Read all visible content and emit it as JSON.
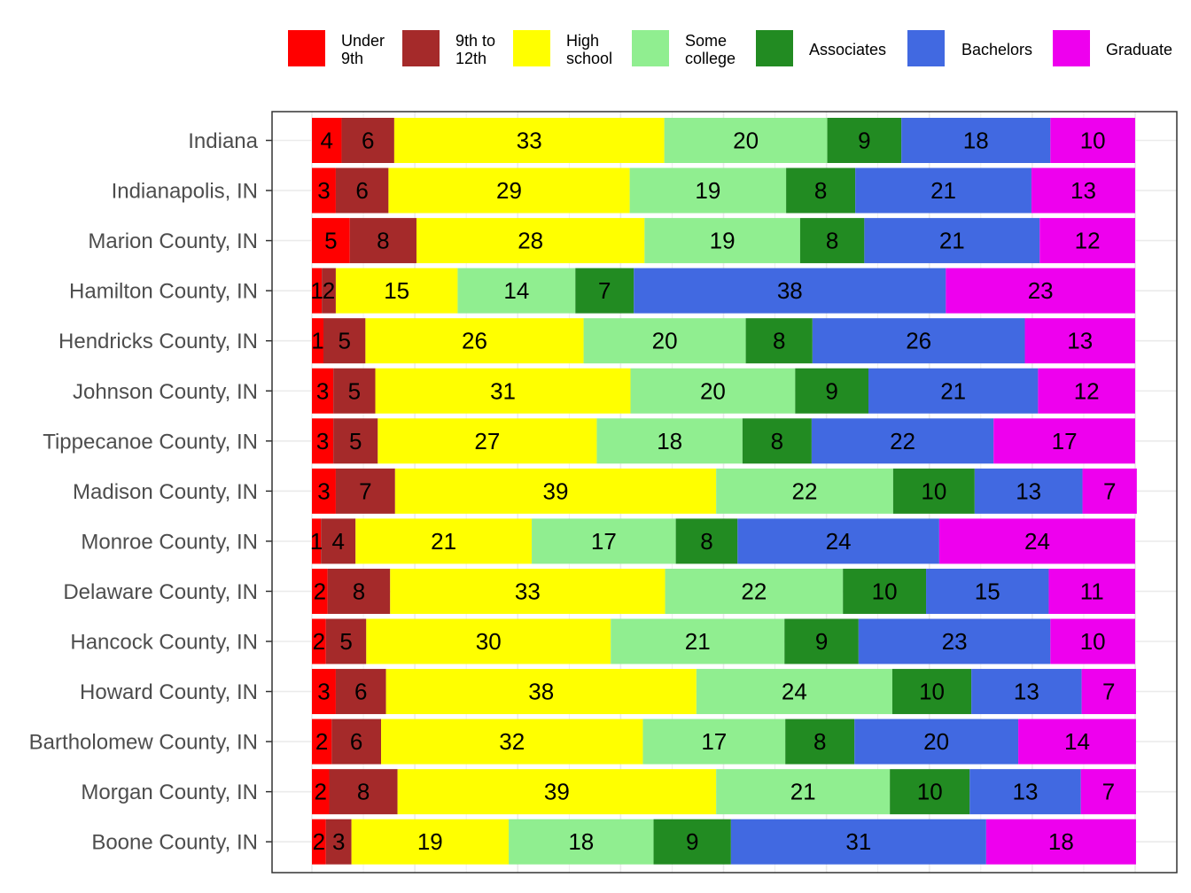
{
  "chart_data": {
    "type": "bar",
    "orientation": "horizontal",
    "stacked": true,
    "normalized_to_100": true,
    "grid": true,
    "legend_position": "top",
    "xlim": [
      0,
      100
    ],
    "categories": [
      "Indiana",
      "Indianapolis, IN",
      "Marion County, IN",
      "Hamilton County, IN",
      "Hendricks County, IN",
      "Johnson County, IN",
      "Tippecanoe County, IN",
      "Madison County, IN",
      "Monroe County, IN",
      "Delaware County, IN",
      "Hancock County, IN",
      "Howard County, IN",
      "Bartholomew County, IN",
      "Morgan County, IN",
      "Boone County, IN"
    ],
    "series": [
      {
        "name": "Under 9th",
        "legend_lines": [
          "Under",
          "9th"
        ],
        "color": "#FF0000",
        "values": [
          3.6,
          2.9,
          4.6,
          1.2,
          1.4,
          2.6,
          2.6,
          2.9,
          1.1,
          1.9,
          1.7,
          2.9,
          2.4,
          2.1,
          1.7
        ]
      },
      {
        "name": "9th to 12th",
        "legend_lines": [
          "9th to",
          "12th"
        ],
        "color": "#A52A2A",
        "values": [
          6.4,
          6.4,
          8.1,
          1.7,
          5.1,
          5.1,
          5.4,
          7.2,
          4.2,
          7.6,
          4.9,
          6.1,
          6.0,
          8.3,
          3.1
        ]
      },
      {
        "name": "High school",
        "legend_lines": [
          "High",
          "school"
        ],
        "color": "#FFFF00",
        "values": [
          32.8,
          29.3,
          27.7,
          14.8,
          26.5,
          31.0,
          26.6,
          39.0,
          21.4,
          33.4,
          29.7,
          37.7,
          31.8,
          38.7,
          19.1
        ]
      },
      {
        "name": "Some college",
        "legend_lines": [
          "Some",
          "college"
        ],
        "color": "#90EE90",
        "values": [
          19.8,
          19.0,
          18.9,
          14.3,
          19.7,
          20.0,
          17.7,
          21.5,
          17.5,
          21.6,
          21.1,
          23.8,
          17.3,
          21.1,
          17.6
        ]
      },
      {
        "name": "Associates",
        "legend_lines": [
          "Associates"
        ],
        "color": "#228B22",
        "values": [
          9.0,
          8.4,
          7.8,
          7.1,
          8.1,
          8.9,
          8.4,
          9.9,
          7.5,
          10.1,
          9.0,
          9.6,
          8.4,
          9.7,
          9.4
        ]
      },
      {
        "name": "Bachelors",
        "legend_lines": [
          "Bachelors"
        ],
        "color": "#4169E1",
        "values": [
          18.1,
          21.4,
          21.3,
          37.9,
          25.8,
          20.6,
          22.1,
          13.1,
          24.5,
          14.9,
          23.3,
          13.4,
          19.9,
          13.5,
          31.0
        ]
      },
      {
        "name": "Graduate",
        "legend_lines": [
          "Graduate"
        ],
        "color": "#EE00EE",
        "values": [
          10.3,
          12.6,
          11.6,
          23.0,
          13.4,
          11.8,
          17.2,
          6.6,
          23.8,
          10.5,
          10.3,
          6.6,
          14.3,
          6.7,
          18.2
        ]
      }
    ],
    "data_labels": [
      [
        "4",
        "6",
        "33",
        "20",
        "9",
        "18",
        "10"
      ],
      [
        "3",
        "6",
        "29",
        "19",
        "8",
        "21",
        "13"
      ],
      [
        "5",
        "8",
        "28",
        "19",
        "8",
        "21",
        "12"
      ],
      [
        "1",
        "2",
        "15",
        "14",
        "7",
        "38",
        "23"
      ],
      [
        "1",
        "5",
        "26",
        "20",
        "8",
        "26",
        "13"
      ],
      [
        "3",
        "5",
        "31",
        "20",
        "9",
        "21",
        "12"
      ],
      [
        "3",
        "5",
        "27",
        "18",
        "8",
        "22",
        "17"
      ],
      [
        "3",
        "7",
        "39",
        "22",
        "10",
        "13",
        "7"
      ],
      [
        "1",
        "4",
        "21",
        "17",
        "8",
        "24",
        "24"
      ],
      [
        "2",
        "8",
        "33",
        "22",
        "10",
        "15",
        "11"
      ],
      [
        "2",
        "5",
        "30",
        "21",
        "9",
        "23",
        "10"
      ],
      [
        "3",
        "6",
        "38",
        "24",
        "10",
        "13",
        "7"
      ],
      [
        "2",
        "6",
        "32",
        "17",
        "8",
        "20",
        "14"
      ],
      [
        "2",
        "8",
        "39",
        "21",
        "10",
        "13",
        "7"
      ],
      [
        "2",
        "3",
        "19",
        "18",
        "9",
        "31",
        "18"
      ]
    ],
    "title": "",
    "xlabel": "",
    "ylabel": ""
  }
}
